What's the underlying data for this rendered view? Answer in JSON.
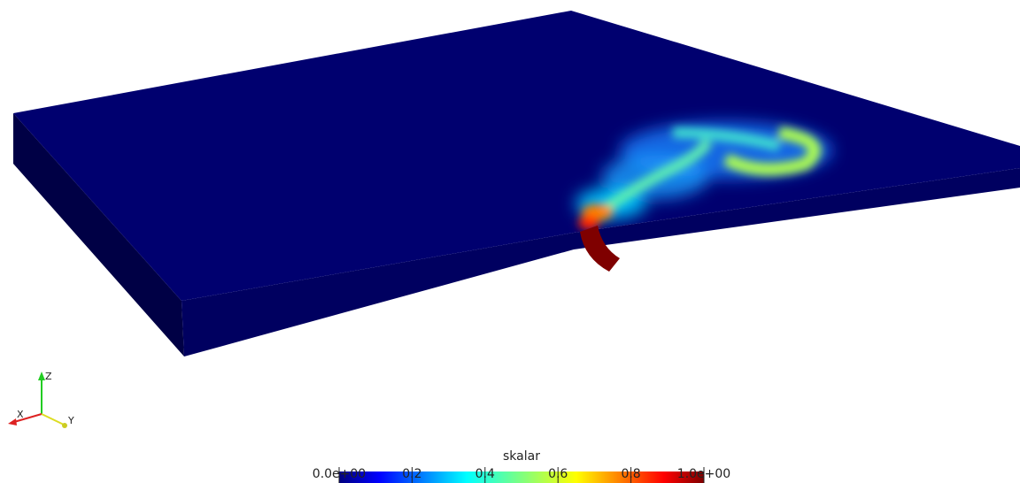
{
  "colorbar": {
    "title": "skalar",
    "range": [
      0,
      1
    ],
    "ticks": [
      {
        "value": 0,
        "label": "0.0e+00"
      },
      0.2,
      0.4,
      0.6,
      0.8,
      {
        "value": 1,
        "label": "1.0e+00"
      }
    ]
  },
  "orientation_axes": {
    "x": "X",
    "y": "Y",
    "z": "Z"
  }
}
